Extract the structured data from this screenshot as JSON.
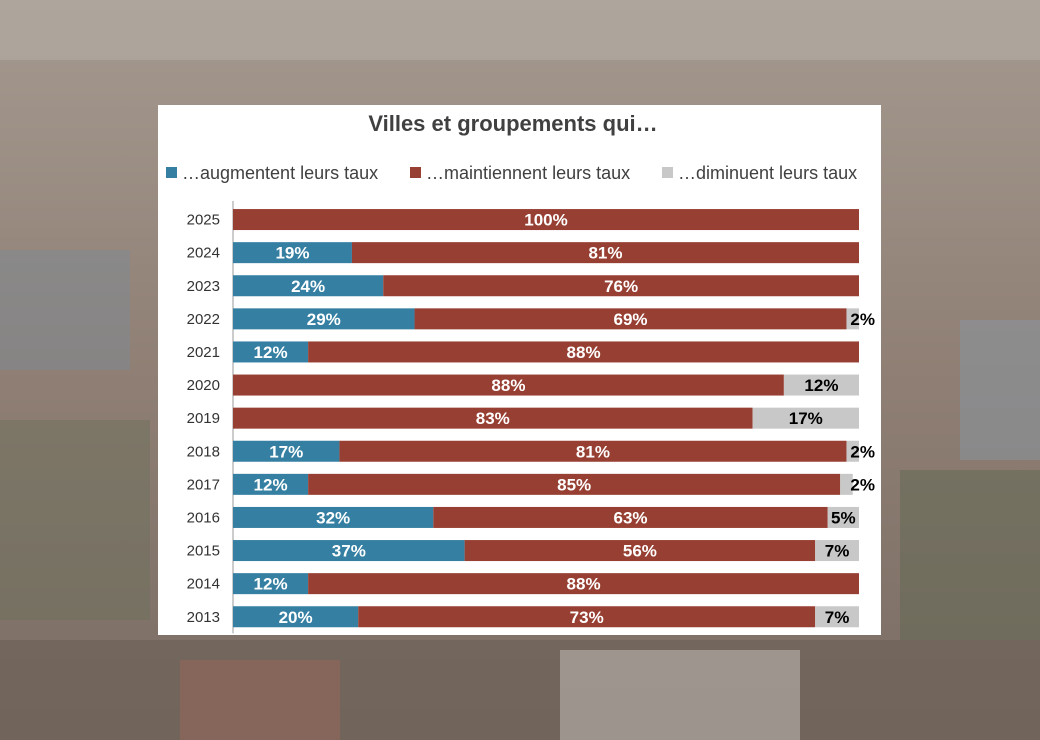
{
  "background": {
    "colors": [
      "#6f645c",
      "#8f8278",
      "#a39388",
      "#7b6b60"
    ]
  },
  "chart_data": {
    "type": "bar",
    "orientation": "horizontal",
    "stacked": true,
    "title": "Villes et groupements qui…",
    "legend_position": "top",
    "categories": [
      "2025",
      "2024",
      "2023",
      "2022",
      "2021",
      "2020",
      "2019",
      "2018",
      "2017",
      "2016",
      "2015",
      "2014",
      "2013"
    ],
    "series": [
      {
        "name": "…augmentent leurs taux",
        "color": "#357fa2",
        "values": [
          0,
          19,
          24,
          29,
          12,
          0,
          0,
          17,
          12,
          32,
          37,
          12,
          20
        ]
      },
      {
        "name": "…maintiennent leurs taux",
        "color": "#973f32",
        "values": [
          100,
          81,
          76,
          69,
          88,
          88,
          83,
          81,
          85,
          63,
          56,
          88,
          73
        ]
      },
      {
        "name": "…diminuent leurs taux",
        "color": "#c8c8c8",
        "values": [
          0,
          0,
          0,
          2,
          0,
          12,
          17,
          2,
          2,
          5,
          7,
          0,
          7
        ]
      }
    ],
    "xlim": [
      0,
      100
    ],
    "grid": false,
    "value_suffix": "%"
  }
}
